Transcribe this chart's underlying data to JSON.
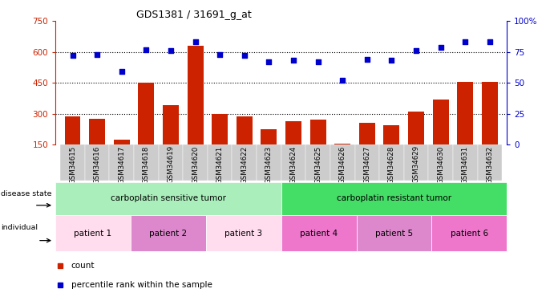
{
  "title": "GDS1381 / 31691_g_at",
  "samples": [
    "GSM34615",
    "GSM34616",
    "GSM34617",
    "GSM34618",
    "GSM34619",
    "GSM34620",
    "GSM34621",
    "GSM34622",
    "GSM34623",
    "GSM34624",
    "GSM34625",
    "GSM34626",
    "GSM34627",
    "GSM34628",
    "GSM34629",
    "GSM34630",
    "GSM34631",
    "GSM34632"
  ],
  "counts": [
    285,
    275,
    175,
    450,
    340,
    630,
    300,
    285,
    225,
    265,
    270,
    155,
    255,
    245,
    310,
    370,
    455,
    455
  ],
  "percentiles": [
    72,
    73,
    59,
    77,
    76,
    83,
    73,
    72,
    67,
    68,
    67,
    52,
    69,
    68,
    76,
    79,
    83,
    83
  ],
  "bar_color": "#cc2200",
  "dot_color": "#0000cc",
  "ylim_left": [
    150,
    750
  ],
  "ylim_right": [
    0,
    100
  ],
  "yticks_left": [
    150,
    300,
    450,
    600,
    750
  ],
  "yticks_right": [
    0,
    25,
    50,
    75,
    100
  ],
  "ytick_labels_left": [
    "150",
    "300",
    "450",
    "600",
    "750"
  ],
  "ytick_labels_right": [
    "0",
    "25",
    "50",
    "75",
    "100%"
  ],
  "hlines": [
    300,
    450,
    600
  ],
  "disease_groups": [
    {
      "label": "carboplatin sensitive tumor",
      "start": 0,
      "end": 9,
      "color": "#aaeebb"
    },
    {
      "label": "carboplatin resistant tumor",
      "start": 9,
      "end": 18,
      "color": "#44dd66"
    }
  ],
  "patient_groups": [
    {
      "label": "patient 1",
      "start": 0,
      "end": 3,
      "color": "#ffddee"
    },
    {
      "label": "patient 2",
      "start": 3,
      "end": 6,
      "color": "#dd88cc"
    },
    {
      "label": "patient 3",
      "start": 6,
      "end": 9,
      "color": "#ffddee"
    },
    {
      "label": "patient 4",
      "start": 9,
      "end": 12,
      "color": "#ee77cc"
    },
    {
      "label": "patient 5",
      "start": 12,
      "end": 15,
      "color": "#dd88cc"
    },
    {
      "label": "patient 6",
      "start": 15,
      "end": 18,
      "color": "#ee77cc"
    }
  ],
  "xticklabel_bg": "#cccccc",
  "background_color": "#ffffff",
  "bar_color_red": "#cc2200",
  "dot_color_blue": "#0000cc",
  "left_axis_color": "#cc2200",
  "right_axis_color": "#0000cc"
}
